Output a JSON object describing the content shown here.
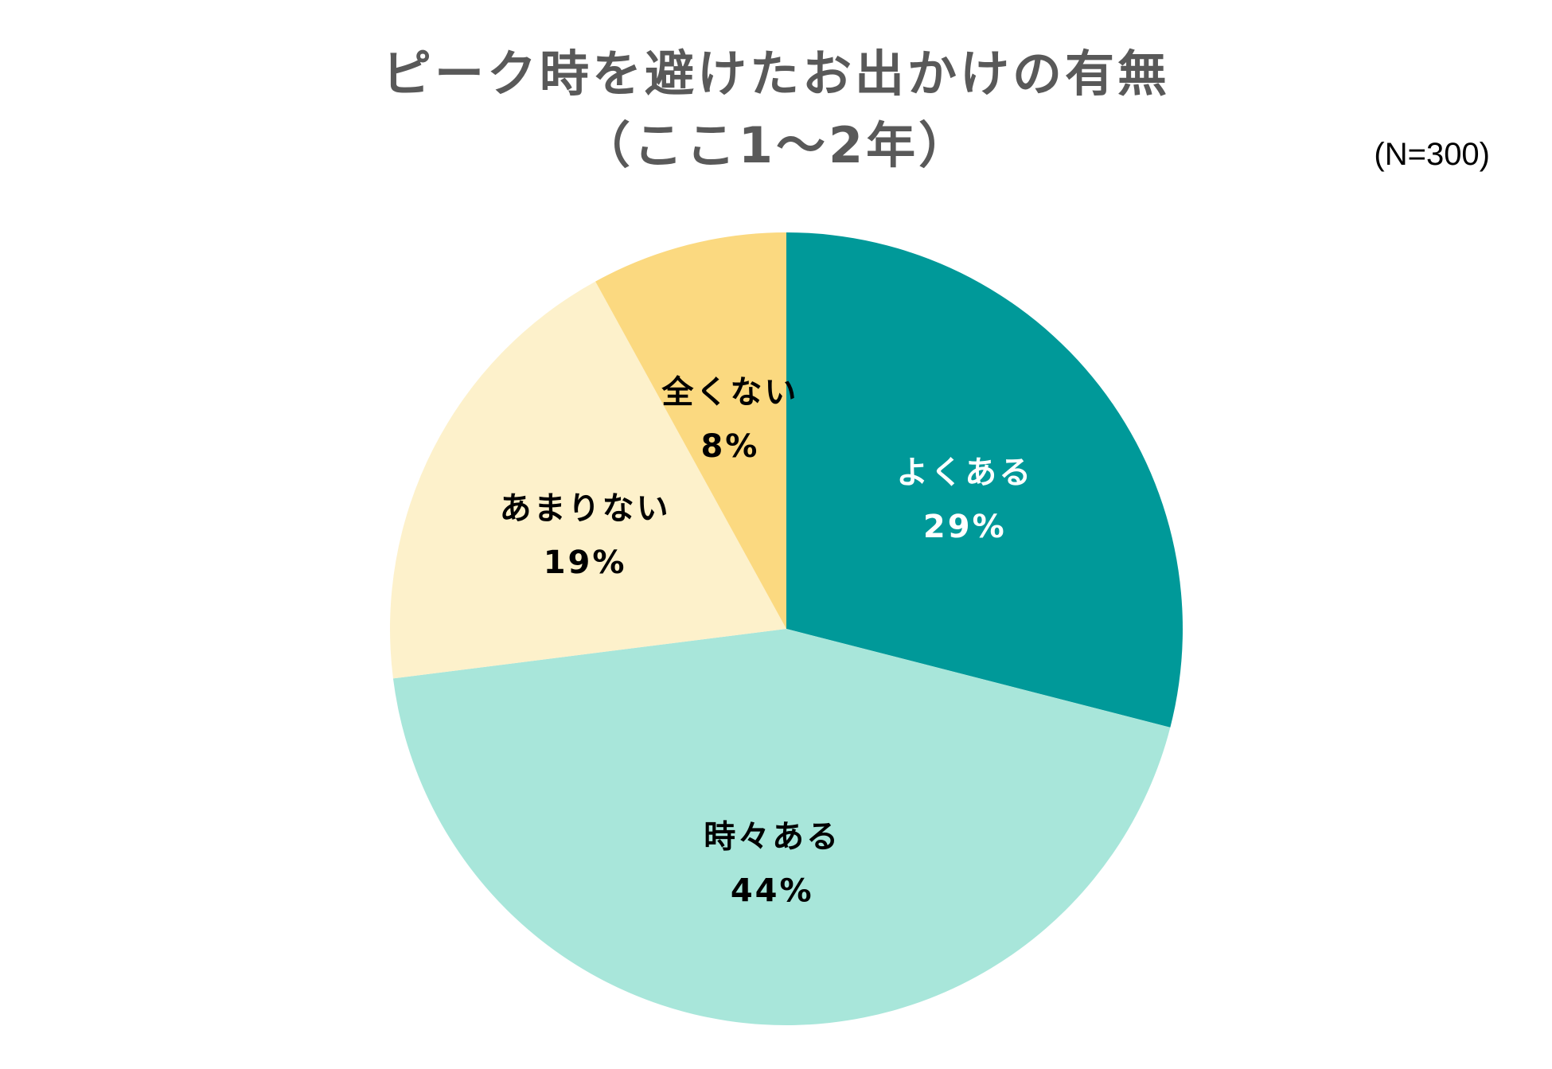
{
  "chart_data": {
    "type": "pie",
    "title": [
      "ピーク時を避けたお出かけの有無",
      "（ここ1～2年）"
    ],
    "note": "(N=300)",
    "slices": [
      {
        "label": "よくある",
        "value": 29,
        "value_label": "29%",
        "color": "#009999",
        "text_color": "#ffffff"
      },
      {
        "label": "時々ある",
        "value": 44,
        "value_label": "44%",
        "color": "#a8e6da",
        "text_color": "#000000"
      },
      {
        "label": "あまりない",
        "value": 19,
        "value_label": "19%",
        "color": "#fdf1cb",
        "text_color": "#000000"
      },
      {
        "label": "全くない",
        "value": 8,
        "value_label": "8%",
        "color": "#fbd980",
        "text_color": "#000000"
      }
    ],
    "start": "12 o'clock",
    "direction": "clockwise"
  }
}
